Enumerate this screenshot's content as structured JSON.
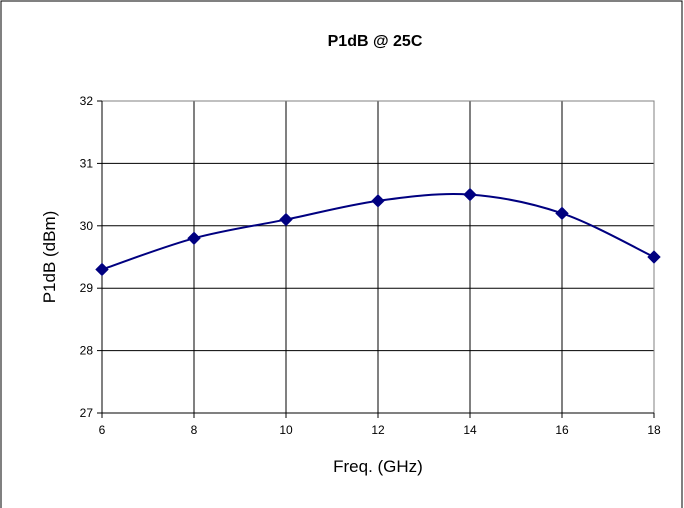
{
  "chart_data": {
    "type": "line",
    "title": "P1dB @ 25C",
    "xlabel": "Freq. (GHz)",
    "ylabel": "P1dB (dBm)",
    "x": [
      6,
      8,
      10,
      12,
      14,
      16,
      18
    ],
    "series": [
      {
        "values": [
          29.3,
          29.8,
          30.1,
          30.4,
          30.5,
          30.2,
          29.5
        ]
      }
    ],
    "xlim": [
      6,
      18
    ],
    "ylim": [
      27,
      32
    ],
    "xticks": [
      6,
      8,
      10,
      12,
      14,
      16,
      18
    ],
    "yticks": [
      27,
      28,
      29,
      30,
      31,
      32
    ],
    "grid": true,
    "legend": "none",
    "marker": "diamond",
    "smooth": true,
    "colors": {
      "series": "#000080",
      "grid": "#000000",
      "frame": "#000000"
    }
  }
}
